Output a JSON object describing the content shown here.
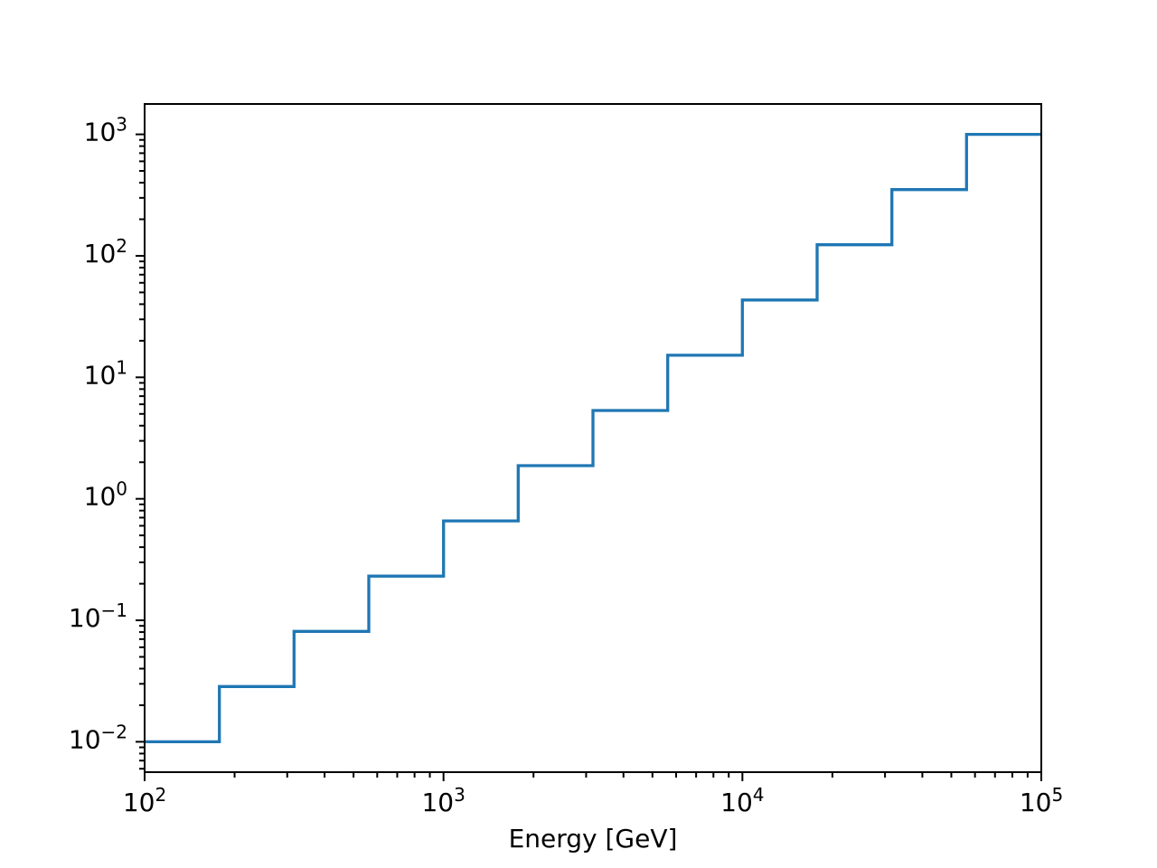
{
  "chart_data": {
    "type": "step",
    "title": "",
    "xlabel": "Energy [GeV]",
    "ylabel": "",
    "xscale": "log",
    "yscale": "log",
    "xlim": [
      100,
      100000
    ],
    "ylim": [
      0.0056234,
      1778.28
    ],
    "grid": false,
    "legend": "none",
    "line_color": "#1f77b4",
    "x_tick_exponents": [
      2,
      3,
      4,
      5
    ],
    "y_tick_exponents": [
      -2,
      -1,
      0,
      1,
      2,
      3
    ],
    "bin_edges": [
      100,
      177.83,
      316.23,
      562.34,
      1000,
      1778.28,
      3162.28,
      5623.41,
      10000,
      17782.79,
      31622.78,
      56234.13,
      100000
    ],
    "values": [
      0.01,
      0.02848,
      0.08111,
      0.231,
      0.658,
      1.874,
      5.337,
      15.2,
      43.29,
      123.3,
      351.1,
      1000
    ]
  }
}
